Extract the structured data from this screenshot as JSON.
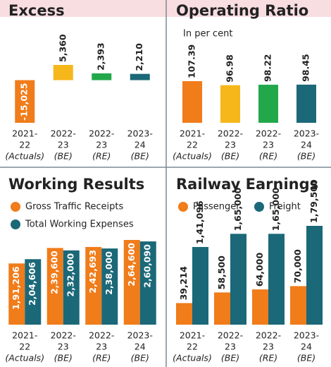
{
  "chart_data": [
    {
      "type": "bar",
      "title": "Excess",
      "categories": [
        [
          "2021-",
          "22",
          "(Actuals)"
        ],
        [
          "2022-",
          "23",
          "(BE)"
        ],
        [
          "2022-",
          "23",
          "(RE)"
        ],
        [
          "2023-",
          "24",
          "(BE)"
        ]
      ],
      "values": [
        -15025,
        5360,
        2393,
        2210
      ],
      "value_labels": [
        "-15,025",
        "5,360",
        "2,393",
        "2,210"
      ],
      "colors": [
        "#f07c1a",
        "#f5b71a",
        "#22a84a",
        "#1b6878"
      ]
    },
    {
      "type": "bar",
      "title": "Operating Ratio",
      "subtitle": "In per cent",
      "categories": [
        [
          "2021-",
          "22",
          "(Actuals)"
        ],
        [
          "2022-",
          "23",
          "(BE)"
        ],
        [
          "2022-",
          "23",
          "(RE)"
        ],
        [
          "2023-",
          "24",
          "(BE)"
        ]
      ],
      "values": [
        107.39,
        96.98,
        98.22,
        98.45
      ],
      "colors": [
        "#f07c1a",
        "#f5b71a",
        "#22a84a",
        "#1b6878"
      ]
    },
    {
      "type": "bar",
      "title": "Working Results",
      "categories": [
        [
          "2021-",
          "22",
          "(Actuals)"
        ],
        [
          "2022-",
          "23",
          "(BE)"
        ],
        [
          "2022-",
          "23",
          "(RE)"
        ],
        [
          "2023-",
          "24",
          "(BE)"
        ]
      ],
      "series": [
        {
          "name": "Gross Traffic Receipts",
          "color": "#f07c1a",
          "values": [
            191206,
            239600,
            242693,
            264600
          ],
          "value_labels": [
            "1,91,206",
            "2,39,600",
            "2,42,693",
            "2,64,600"
          ]
        },
        {
          "name": "Total Working Expenses",
          "color": "#1b6878",
          "values": [
            204606,
            232000,
            238000,
            260090
          ],
          "value_labels": [
            "2,04,606",
            "2,32,000",
            "2,38,000",
            "2,60,090"
          ]
        }
      ]
    },
    {
      "type": "bar",
      "title": "Railway Earnings",
      "categories": [
        [
          "2021-",
          "22",
          "(Actuals)"
        ],
        [
          "2022-",
          "23",
          "(BE)"
        ],
        [
          "2022-",
          "23",
          "(RE)"
        ],
        [
          "2023-",
          "24",
          "(BE)"
        ]
      ],
      "series": [
        {
          "name": "Passenger",
          "color": "#f07c1a",
          "values": [
            39214,
            58500,
            64000,
            70000
          ],
          "value_labels": [
            "39,214",
            "58,500",
            "64,000",
            "70,000"
          ]
        },
        {
          "name": "Freight",
          "color": "#1b6878",
          "values": [
            141096,
            165000,
            165000,
            179500
          ],
          "value_labels": [
            "1,41,096",
            "1,65,000",
            "1,65,000",
            "1,79,500"
          ]
        }
      ]
    }
  ]
}
